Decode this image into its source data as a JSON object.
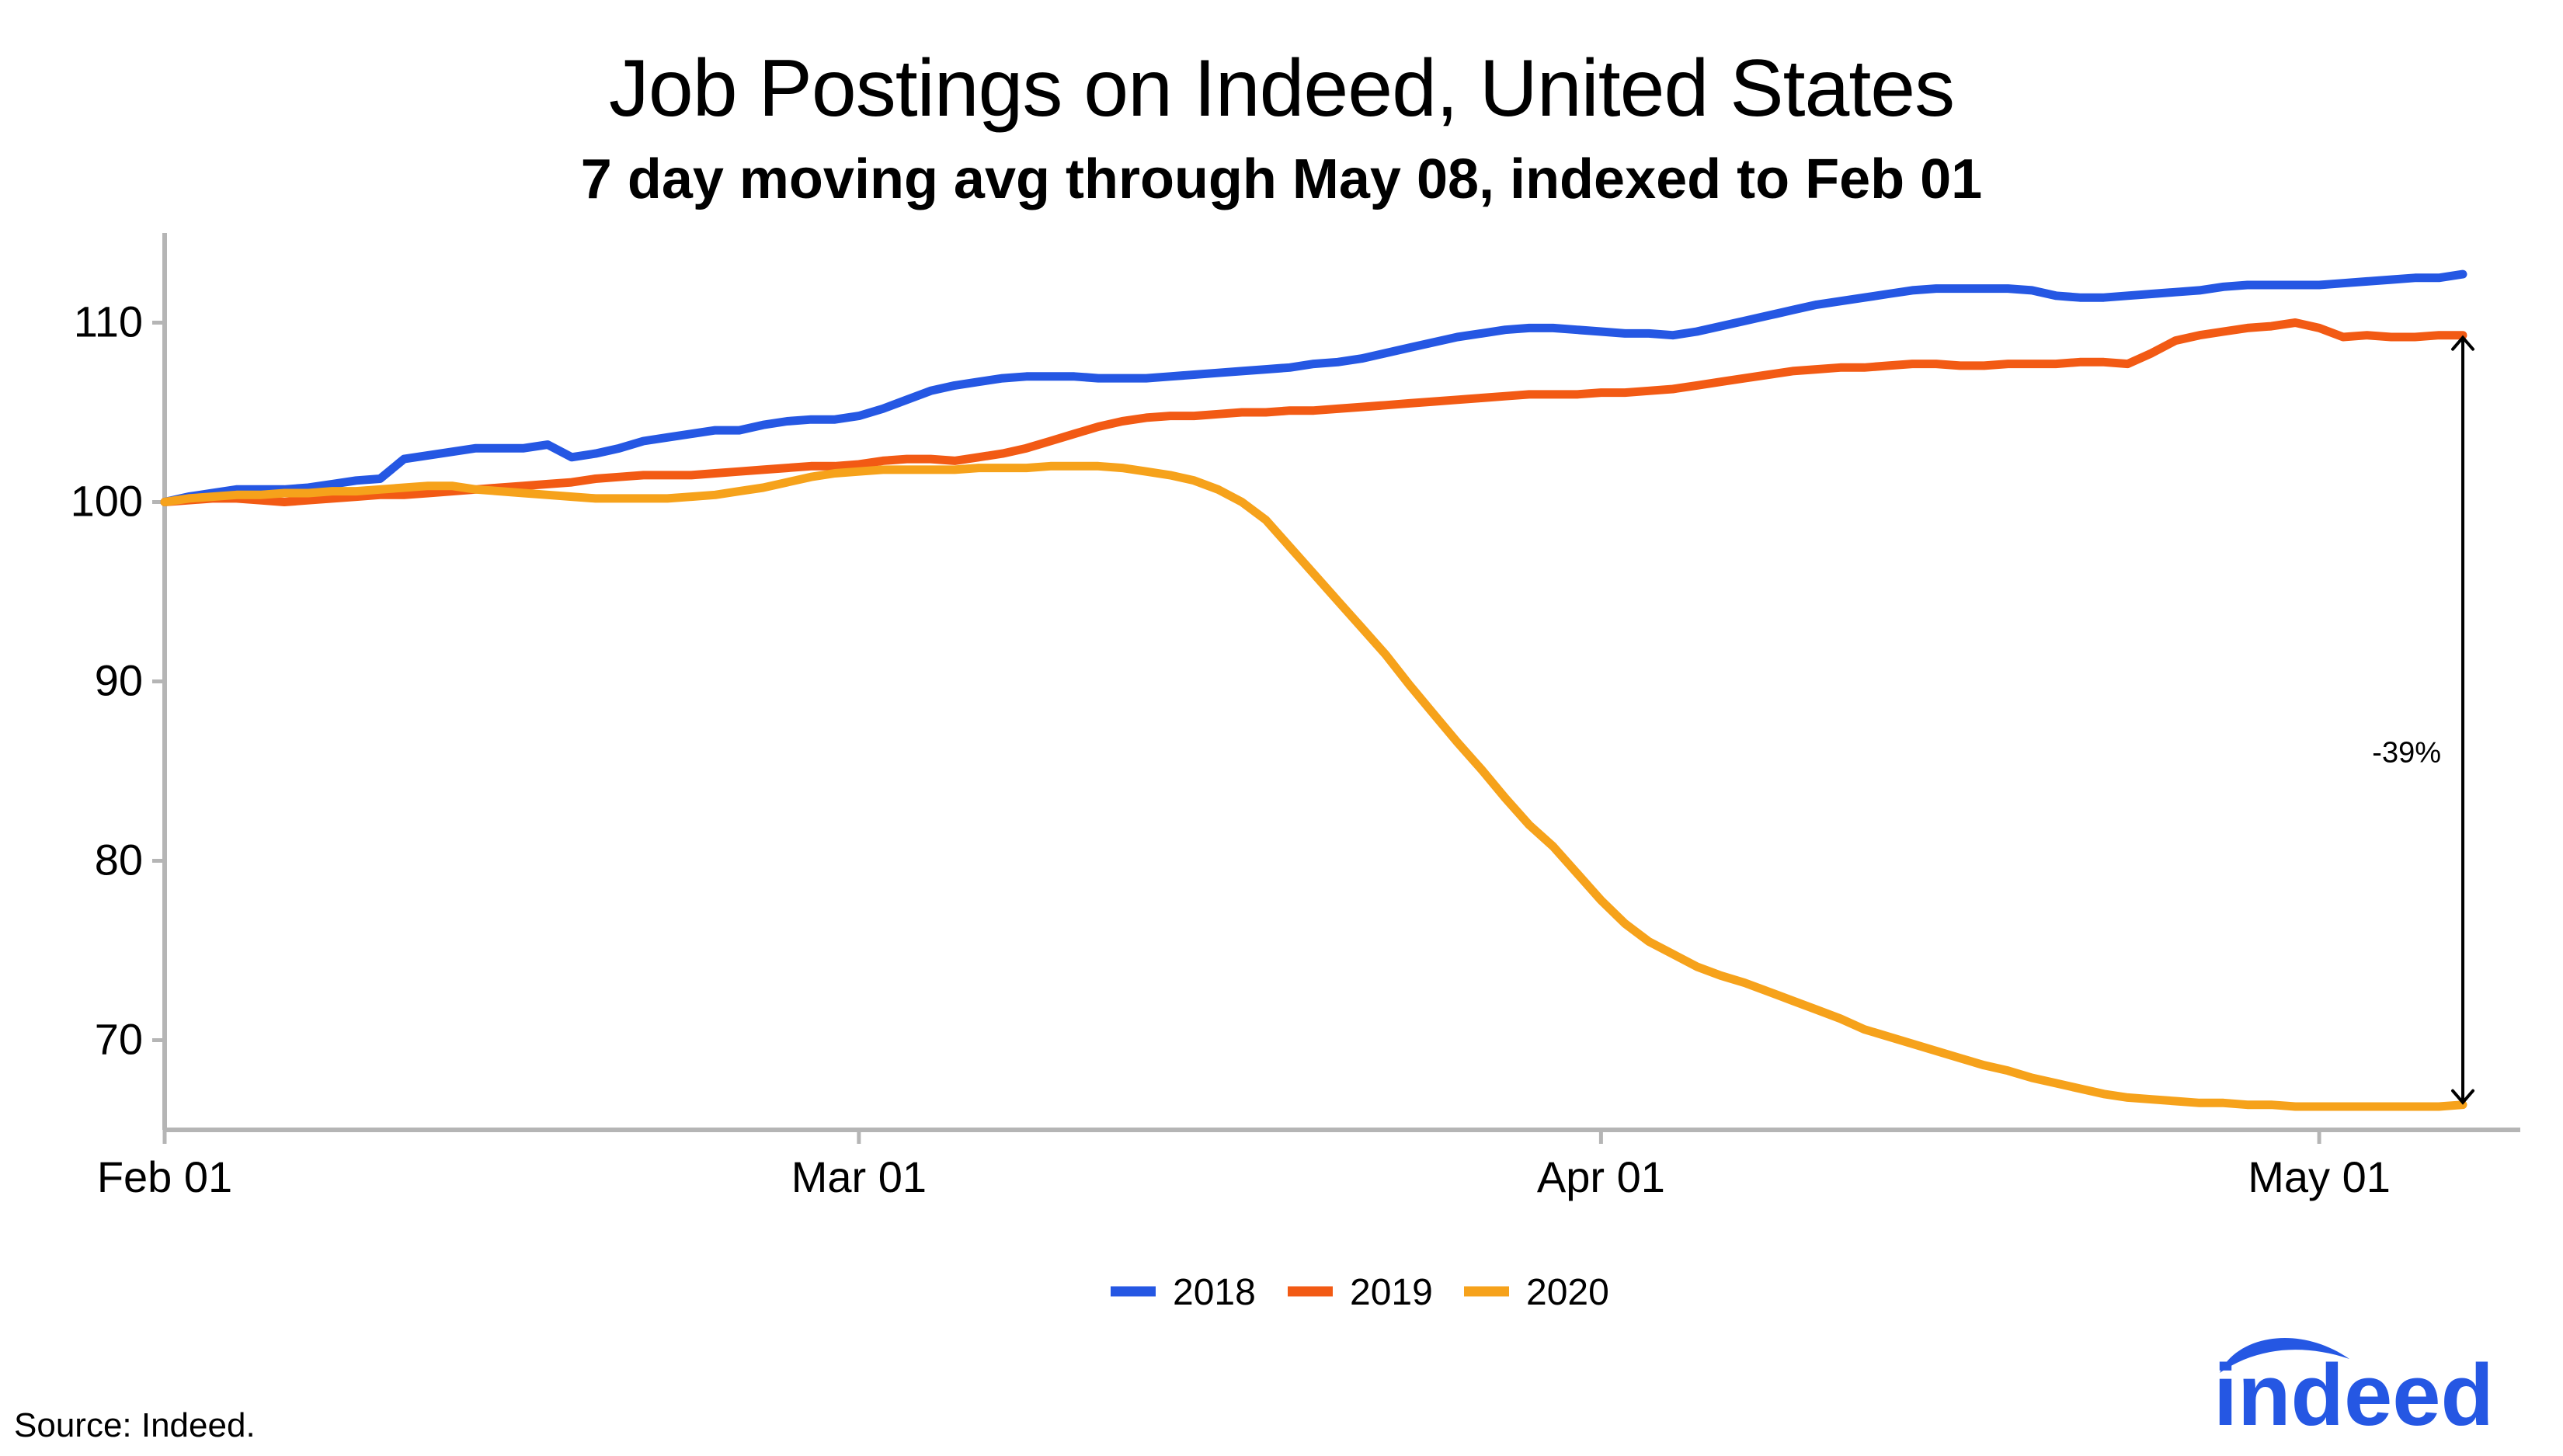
{
  "chart_data": {
    "type": "line",
    "title": "Job Postings on Indeed, United States",
    "subtitle": "7 day moving avg through May 08, indexed to Feb 01",
    "xlabel": "",
    "ylabel": "",
    "x_start": "Feb 01",
    "x_end": "May 08",
    "x_ticks": [
      "Feb 01",
      "Mar 01",
      "Apr 01",
      "May 01"
    ],
    "y_ticks": [
      70,
      80,
      90,
      100,
      110
    ],
    "ylim": [
      65,
      115
    ],
    "grid": false,
    "legend_position": "bottom",
    "series": [
      {
        "name": "2018",
        "color": "#2557e3",
        "values": [
          100.0,
          100.3,
          100.5,
          100.7,
          100.7,
          100.7,
          100.8,
          101.0,
          101.2,
          101.3,
          102.4,
          102.6,
          102.8,
          103.0,
          103.0,
          103.0,
          103.2,
          102.5,
          102.7,
          103.0,
          103.4,
          103.6,
          103.8,
          104.0,
          104.0,
          104.3,
          104.5,
          104.6,
          104.6,
          104.8,
          105.2,
          105.7,
          106.2,
          106.5,
          106.7,
          106.9,
          107.0,
          107.0,
          107.0,
          106.9,
          106.9,
          106.9,
          107.0,
          107.1,
          107.2,
          107.3,
          107.4,
          107.5,
          107.7,
          107.8,
          108.0,
          108.3,
          108.6,
          108.9,
          109.2,
          109.4,
          109.6,
          109.7,
          109.7,
          109.6,
          109.5,
          109.4,
          109.4,
          109.3,
          109.5,
          109.8,
          110.1,
          110.4,
          110.7,
          111.0,
          111.2,
          111.4,
          111.6,
          111.8,
          111.9,
          111.9,
          111.9,
          111.9,
          111.8,
          111.5,
          111.4,
          111.4,
          111.5,
          111.6,
          111.7,
          111.8,
          112.0,
          112.1,
          112.1,
          112.1,
          112.1,
          112.2,
          112.3,
          112.4,
          112.5,
          112.5,
          112.7
        ]
      },
      {
        "name": "2019",
        "color": "#f25a14",
        "values": [
          100.0,
          100.1,
          100.2,
          100.2,
          100.1,
          100.0,
          100.1,
          100.2,
          100.3,
          100.4,
          100.4,
          100.5,
          100.6,
          100.7,
          100.8,
          100.9,
          101.0,
          101.1,
          101.3,
          101.4,
          101.5,
          101.5,
          101.5,
          101.6,
          101.7,
          101.8,
          101.9,
          102.0,
          102.0,
          102.1,
          102.3,
          102.4,
          102.4,
          102.3,
          102.5,
          102.7,
          103.0,
          103.4,
          103.8,
          104.2,
          104.5,
          104.7,
          104.8,
          104.8,
          104.9,
          105.0,
          105.0,
          105.1,
          105.1,
          105.2,
          105.3,
          105.4,
          105.5,
          105.6,
          105.7,
          105.8,
          105.9,
          106.0,
          106.0,
          106.0,
          106.1,
          106.1,
          106.2,
          106.3,
          106.5,
          106.7,
          106.9,
          107.1,
          107.3,
          107.4,
          107.5,
          107.5,
          107.6,
          107.7,
          107.7,
          107.6,
          107.6,
          107.7,
          107.7,
          107.7,
          107.8,
          107.8,
          107.7,
          108.3,
          109.0,
          109.3,
          109.5,
          109.7,
          109.8,
          110.0,
          109.7,
          109.2,
          109.3,
          109.2,
          109.2,
          109.3,
          109.3
        ]
      },
      {
        "name": "2020",
        "color": "#f6a21b",
        "values": [
          100.0,
          100.2,
          100.3,
          100.4,
          100.4,
          100.5,
          100.5,
          100.6,
          100.6,
          100.7,
          100.8,
          100.9,
          100.9,
          100.7,
          100.6,
          100.5,
          100.4,
          100.3,
          100.2,
          100.2,
          100.2,
          100.2,
          100.3,
          100.4,
          100.6,
          100.8,
          101.1,
          101.4,
          101.6,
          101.7,
          101.8,
          101.8,
          101.8,
          101.8,
          101.9,
          101.9,
          101.9,
          102.0,
          102.0,
          102.0,
          101.9,
          101.7,
          101.5,
          101.2,
          100.7,
          100.0,
          99.0,
          97.5,
          96.0,
          94.5,
          93.0,
          91.5,
          89.8,
          88.2,
          86.6,
          85.1,
          83.5,
          82.0,
          80.8,
          79.3,
          77.8,
          76.5,
          75.5,
          74.8,
          74.1,
          73.6,
          73.2,
          72.7,
          72.2,
          71.7,
          71.2,
          70.6,
          70.2,
          69.8,
          69.4,
          69.0,
          68.6,
          68.3,
          67.9,
          67.6,
          67.3,
          67.0,
          66.8,
          66.7,
          66.6,
          66.5,
          66.5,
          66.4,
          66.4,
          66.3,
          66.3,
          66.3,
          66.3,
          66.3,
          66.3,
          66.3,
          66.4
        ]
      }
    ],
    "annotation": {
      "label": "-39%",
      "from_value": 66.4,
      "to_value": 109.3,
      "at_day": 96
    }
  },
  "footer": {
    "source": "Source: Indeed.",
    "logo_text": "indeed"
  },
  "colors": {
    "axis": "#b5b5b5",
    "text": "#000000",
    "logo": "#2557e3"
  }
}
